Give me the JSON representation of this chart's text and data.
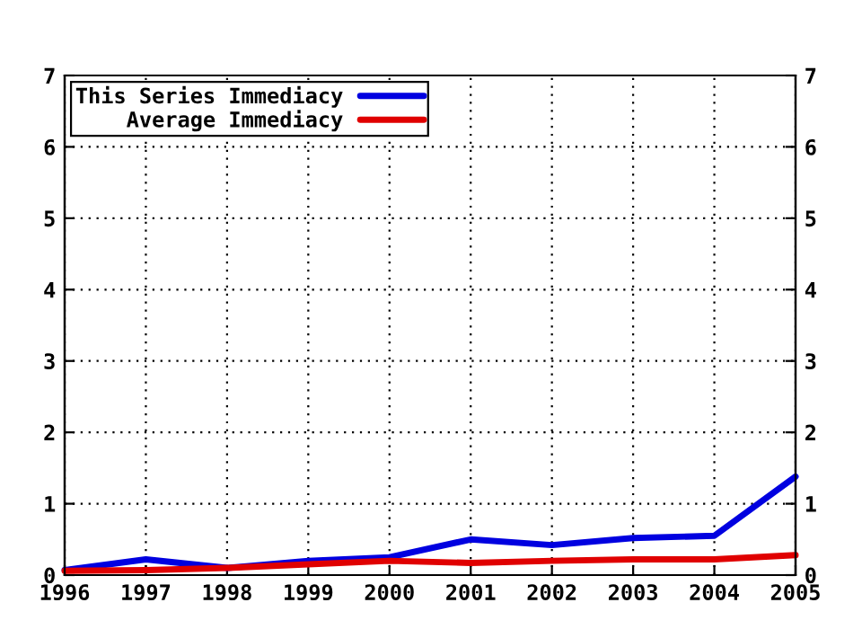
{
  "chart_data": {
    "type": "line",
    "x": [
      1996,
      1997,
      1998,
      1999,
      2000,
      2001,
      2002,
      2003,
      2004,
      2005
    ],
    "series": [
      {
        "name": "This Series Immediacy",
        "color": "#0000e0",
        "values": [
          0.07,
          0.22,
          0.1,
          0.2,
          0.25,
          0.5,
          0.42,
          0.52,
          0.55,
          1.38
        ]
      },
      {
        "name": "Average Immediacy",
        "color": "#e00000",
        "values": [
          0.06,
          0.07,
          0.1,
          0.15,
          0.2,
          0.17,
          0.2,
          0.22,
          0.22,
          0.28
        ]
      }
    ],
    "xlim": [
      1996,
      2005
    ],
    "xticks": [
      1996,
      1997,
      1998,
      1999,
      2000,
      2001,
      2002,
      2003,
      2004,
      2005
    ],
    "ylim": [
      0,
      7
    ],
    "yticks": [
      0,
      1,
      2,
      3,
      4,
      5,
      6,
      7
    ],
    "y2lim": [
      0,
      7
    ],
    "y2ticks": [
      0,
      1,
      2,
      3,
      4,
      5,
      6,
      7
    ],
    "grid": true,
    "legend": "top left",
    "marker": "none",
    "line_style": "solid"
  }
}
